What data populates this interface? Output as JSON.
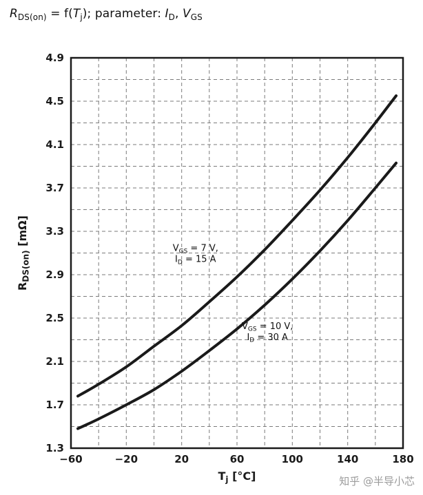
{
  "header": {
    "title_parts": [
      {
        "t": "R",
        "style": "italic"
      },
      {
        "t": "DS(on)",
        "style": "sub"
      },
      {
        "t": " = f(",
        "style": "normal"
      },
      {
        "t": "T",
        "style": "italic"
      },
      {
        "t": "j",
        "style": "sub"
      },
      {
        "t": "); parameter: ",
        "style": "normal"
      },
      {
        "t": "I",
        "style": "italic"
      },
      {
        "t": "D",
        "style": "sub"
      },
      {
        "t": ", ",
        "style": "normal"
      },
      {
        "t": "V",
        "style": "italic"
      },
      {
        "t": "GS",
        "style": "sub"
      }
    ]
  },
  "watermark": {
    "text": "知乎 @半导小芯"
  },
  "chart_data": {
    "type": "line",
    "title": "R_DS(on) = f(T_j); parameter: I_D, V_GS",
    "xlabel": "T_j [°C]",
    "ylabel": "R_DS(on) [mΩ]",
    "xlabel_parts": [
      {
        "t": "T"
      },
      {
        "t": "j",
        "sub": true
      },
      {
        "t": " [°C]"
      }
    ],
    "ylabel_parts": [
      {
        "t": "R"
      },
      {
        "t": "DS(on)",
        "sub": true
      },
      {
        "t": " [mΩ]"
      }
    ],
    "xlim": [
      -60,
      180
    ],
    "ylim": [
      1.3,
      4.9
    ],
    "xticks": [
      -60,
      -20,
      20,
      60,
      100,
      140,
      180
    ],
    "xtick_labels": [
      "−60",
      "−20",
      "20",
      "60",
      "100",
      "140",
      "180"
    ],
    "yticks": [
      1.3,
      1.7,
      2.1,
      2.5,
      2.9,
      3.3,
      3.7,
      4.1,
      4.5,
      4.9
    ],
    "ytick_labels": [
      "1.3",
      "1.7",
      "2.1",
      "2.5",
      "2.9",
      "3.3",
      "3.7",
      "4.1",
      "4.5",
      "4.9"
    ],
    "grid": {
      "style": "dashed",
      "x_step": 20,
      "y_step": 0.2
    },
    "legend_position": "inline-annotations",
    "line_color": "#1a1a1a",
    "series": [
      {
        "name": "VGS = 7 V, ID = 15 A",
        "x": [
          -55,
          -40,
          -20,
          0,
          20,
          40,
          60,
          80,
          100,
          120,
          140,
          160,
          175
        ],
        "values": [
          1.78,
          1.89,
          2.05,
          2.24,
          2.43,
          2.65,
          2.88,
          3.13,
          3.4,
          3.68,
          3.98,
          4.3,
          4.55
        ],
        "label_lines": [
          [
            {
              "t": "V"
            },
            {
              "t": "GS",
              "sub": true
            },
            {
              "t": " = 7 V,"
            }
          ],
          [
            {
              "t": "I"
            },
            {
              "t": "D",
              "sub": true
            },
            {
              "t": " = 15 A"
            }
          ]
        ],
        "label_anchor": {
          "x": 30,
          "y": 3.12
        }
      },
      {
        "name": "VGS = 10 V, ID = 30 A",
        "x": [
          -55,
          -40,
          -20,
          0,
          20,
          40,
          60,
          80,
          100,
          120,
          140,
          160,
          175
        ],
        "values": [
          1.48,
          1.57,
          1.7,
          1.84,
          2.01,
          2.2,
          2.4,
          2.62,
          2.86,
          3.12,
          3.4,
          3.7,
          3.93
        ],
        "label_lines": [
          [
            {
              "t": "V"
            },
            {
              "t": "GS",
              "sub": true
            },
            {
              "t": " = 10 V,"
            }
          ],
          [
            {
              "t": "I"
            },
            {
              "t": "D",
              "sub": true
            },
            {
              "t": " = 30 A"
            }
          ]
        ],
        "label_anchor": {
          "x": 82,
          "y": 2.4
        }
      }
    ]
  }
}
